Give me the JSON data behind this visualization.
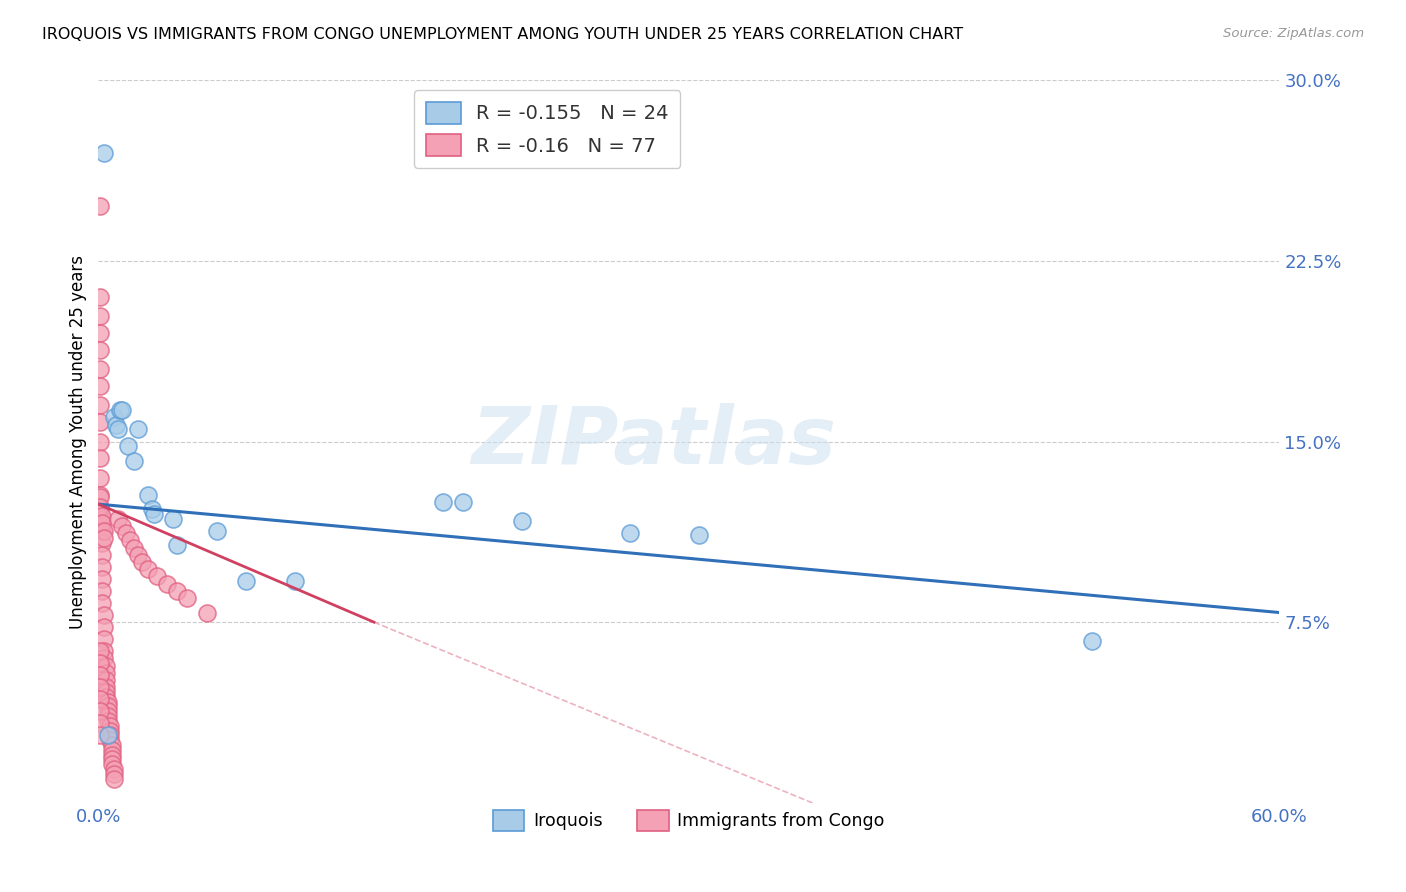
{
  "title": "IROQUOIS VS IMMIGRANTS FROM CONGO UNEMPLOYMENT AMONG YOUTH UNDER 25 YEARS CORRELATION CHART",
  "source": "Source: ZipAtlas.com",
  "ylabel": "Unemployment Among Youth under 25 years",
  "xlim": [
    0.0,
    0.6
  ],
  "ylim": [
    0.0,
    0.3
  ],
  "yticks": [
    0.075,
    0.15,
    0.225,
    0.3
  ],
  "ytick_labels": [
    "7.5%",
    "15.0%",
    "22.5%",
    "30.0%"
  ],
  "xticks": [
    0.0,
    0.1,
    0.2,
    0.3,
    0.4,
    0.5,
    0.6
  ],
  "xtick_labels": [
    "0.0%",
    "",
    "",
    "",
    "",
    "",
    "60.0%"
  ],
  "blue_R": -0.155,
  "blue_N": 24,
  "pink_R": -0.16,
  "pink_N": 77,
  "blue_color": "#a8cce8",
  "pink_color": "#f4a0b5",
  "blue_edge_color": "#5b9bd5",
  "pink_edge_color": "#e06080",
  "blue_line_color": "#3070b8",
  "pink_line_color": "#d04060",
  "blue_scatter": [
    [
      0.003,
      0.27
    ],
    [
      0.008,
      0.16
    ],
    [
      0.009,
      0.157
    ],
    [
      0.01,
      0.155
    ],
    [
      0.011,
      0.163
    ],
    [
      0.012,
      0.163
    ],
    [
      0.015,
      0.148
    ],
    [
      0.018,
      0.142
    ],
    [
      0.02,
      0.155
    ],
    [
      0.025,
      0.128
    ],
    [
      0.027,
      0.122
    ],
    [
      0.028,
      0.12
    ],
    [
      0.038,
      0.118
    ],
    [
      0.04,
      0.107
    ],
    [
      0.06,
      0.113
    ],
    [
      0.075,
      0.092
    ],
    [
      0.1,
      0.092
    ],
    [
      0.175,
      0.125
    ],
    [
      0.185,
      0.125
    ],
    [
      0.215,
      0.117
    ],
    [
      0.27,
      0.112
    ],
    [
      0.305,
      0.111
    ],
    [
      0.505,
      0.067
    ],
    [
      0.005,
      0.028
    ]
  ],
  "pink_scatter": [
    [
      0.001,
      0.248
    ],
    [
      0.001,
      0.21
    ],
    [
      0.001,
      0.202
    ],
    [
      0.001,
      0.195
    ],
    [
      0.001,
      0.188
    ],
    [
      0.001,
      0.18
    ],
    [
      0.001,
      0.173
    ],
    [
      0.001,
      0.165
    ],
    [
      0.001,
      0.158
    ],
    [
      0.001,
      0.15
    ],
    [
      0.001,
      0.143
    ],
    [
      0.001,
      0.135
    ],
    [
      0.001,
      0.128
    ],
    [
      0.001,
      0.122
    ],
    [
      0.002,
      0.118
    ],
    [
      0.002,
      0.113
    ],
    [
      0.002,
      0.108
    ],
    [
      0.002,
      0.103
    ],
    [
      0.002,
      0.098
    ],
    [
      0.002,
      0.093
    ],
    [
      0.002,
      0.088
    ],
    [
      0.002,
      0.083
    ],
    [
      0.003,
      0.078
    ],
    [
      0.003,
      0.073
    ],
    [
      0.003,
      0.068
    ],
    [
      0.003,
      0.063
    ],
    [
      0.003,
      0.06
    ],
    [
      0.004,
      0.057
    ],
    [
      0.004,
      0.054
    ],
    [
      0.004,
      0.051
    ],
    [
      0.004,
      0.048
    ],
    [
      0.004,
      0.046
    ],
    [
      0.004,
      0.044
    ],
    [
      0.005,
      0.042
    ],
    [
      0.005,
      0.04
    ],
    [
      0.005,
      0.038
    ],
    [
      0.005,
      0.036
    ],
    [
      0.005,
      0.034
    ],
    [
      0.006,
      0.032
    ],
    [
      0.006,
      0.03
    ],
    [
      0.006,
      0.028
    ],
    [
      0.006,
      0.026
    ],
    [
      0.007,
      0.024
    ],
    [
      0.007,
      0.022
    ],
    [
      0.007,
      0.02
    ],
    [
      0.007,
      0.018
    ],
    [
      0.007,
      0.016
    ],
    [
      0.008,
      0.014
    ],
    [
      0.008,
      0.012
    ],
    [
      0.008,
      0.01
    ],
    [
      0.001,
      0.127
    ],
    [
      0.001,
      0.123
    ],
    [
      0.002,
      0.119
    ],
    [
      0.002,
      0.116
    ],
    [
      0.003,
      0.113
    ],
    [
      0.003,
      0.11
    ],
    [
      0.01,
      0.118
    ],
    [
      0.012,
      0.115
    ],
    [
      0.014,
      0.112
    ],
    [
      0.016,
      0.109
    ],
    [
      0.018,
      0.106
    ],
    [
      0.02,
      0.103
    ],
    [
      0.022,
      0.1
    ],
    [
      0.025,
      0.097
    ],
    [
      0.03,
      0.094
    ],
    [
      0.035,
      0.091
    ],
    [
      0.04,
      0.088
    ],
    [
      0.045,
      0.085
    ],
    [
      0.055,
      0.079
    ],
    [
      0.001,
      0.063
    ],
    [
      0.001,
      0.058
    ],
    [
      0.001,
      0.053
    ],
    [
      0.001,
      0.048
    ],
    [
      0.001,
      0.043
    ],
    [
      0.001,
      0.038
    ],
    [
      0.001,
      0.033
    ],
    [
      0.001,
      0.028
    ]
  ],
  "blue_trend": [
    0.0,
    0.124,
    0.6,
    0.079
  ],
  "pink_trend": [
    0.0,
    0.124,
    0.14,
    0.075
  ],
  "pink_dash": [
    0.14,
    0.075,
    0.6,
    -0.08
  ],
  "grid_color": "#cccccc",
  "bg_color": "#ffffff",
  "watermark_text": "ZIPatlas",
  "legend_label1": "Iroquois",
  "legend_label2": "Immigrants from Congo"
}
